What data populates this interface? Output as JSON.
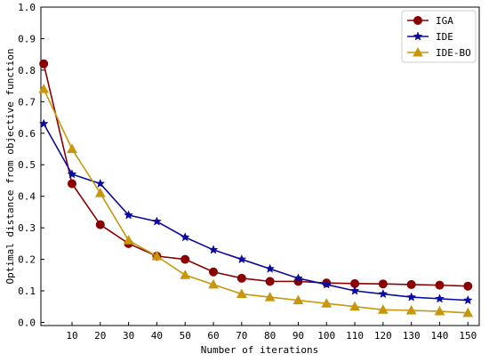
{
  "chart_data": {
    "type": "line",
    "title": "",
    "xlabel": "Number of iterations",
    "ylabel": "Optimal distance from objective function",
    "xlim": [
      -1,
      154
    ],
    "ylim": [
      -0.01,
      1.0
    ],
    "x_ticks": [
      10,
      20,
      30,
      40,
      50,
      60,
      70,
      80,
      90,
      100,
      110,
      120,
      130,
      140,
      150
    ],
    "y_ticks": [
      0.0,
      0.1,
      0.2,
      0.3,
      0.4,
      0.5,
      0.6,
      0.7,
      0.8,
      0.9,
      1.0
    ],
    "y_tick_labels": [
      "0.0",
      "0.1",
      "0.2",
      "0.3",
      "0.4",
      "0.5",
      "0.6",
      "0.7",
      "0.8",
      "0.9",
      "1.0"
    ],
    "x": [
      0,
      10,
      20,
      30,
      40,
      50,
      60,
      70,
      80,
      90,
      100,
      110,
      120,
      130,
      140,
      150
    ],
    "legend_position": "top-right",
    "grid": false,
    "series": [
      {
        "name": "IGA",
        "color": "#8b0000",
        "marker": "circle",
        "values": [
          0.82,
          0.44,
          0.31,
          0.25,
          0.21,
          0.2,
          0.16,
          0.14,
          0.13,
          0.13,
          0.125,
          0.123,
          0.122,
          0.12,
          0.118,
          0.115
        ]
      },
      {
        "name": "IDE",
        "color": "#0a0aa0",
        "marker": "star",
        "values": [
          0.63,
          0.47,
          0.44,
          0.34,
          0.32,
          0.27,
          0.23,
          0.2,
          0.17,
          0.14,
          0.12,
          0.1,
          0.09,
          0.08,
          0.075,
          0.07
        ]
      },
      {
        "name": "IDE-BO",
        "color": "#c8960a",
        "marker": "triangle",
        "values": [
          0.74,
          0.55,
          0.41,
          0.26,
          0.21,
          0.15,
          0.12,
          0.09,
          0.08,
          0.07,
          0.06,
          0.05,
          0.04,
          0.038,
          0.035,
          0.03
        ]
      }
    ]
  }
}
